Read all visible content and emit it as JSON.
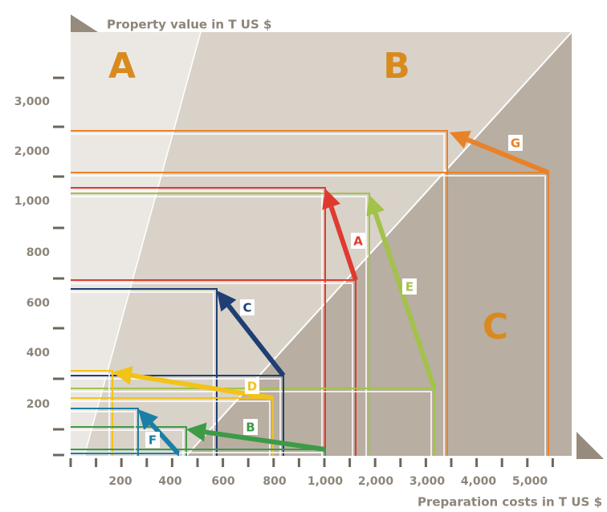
{
  "y_axis": {
    "title": "Property value in T US $",
    "ticks": [
      "3,000",
      "2,000",
      "1,000",
      "800",
      "600",
      "400",
      "200"
    ]
  },
  "x_axis": {
    "title": "Preparation costs in T US $",
    "ticks": [
      "200",
      "400",
      "600",
      "800",
      "1,000",
      "2,000",
      "3,000",
      "4,000",
      "5,000"
    ]
  },
  "zones": [
    "A",
    "B",
    "C"
  ],
  "arrows": [
    "A",
    "B",
    "C",
    "D",
    "E",
    "F",
    "G"
  ]
}
